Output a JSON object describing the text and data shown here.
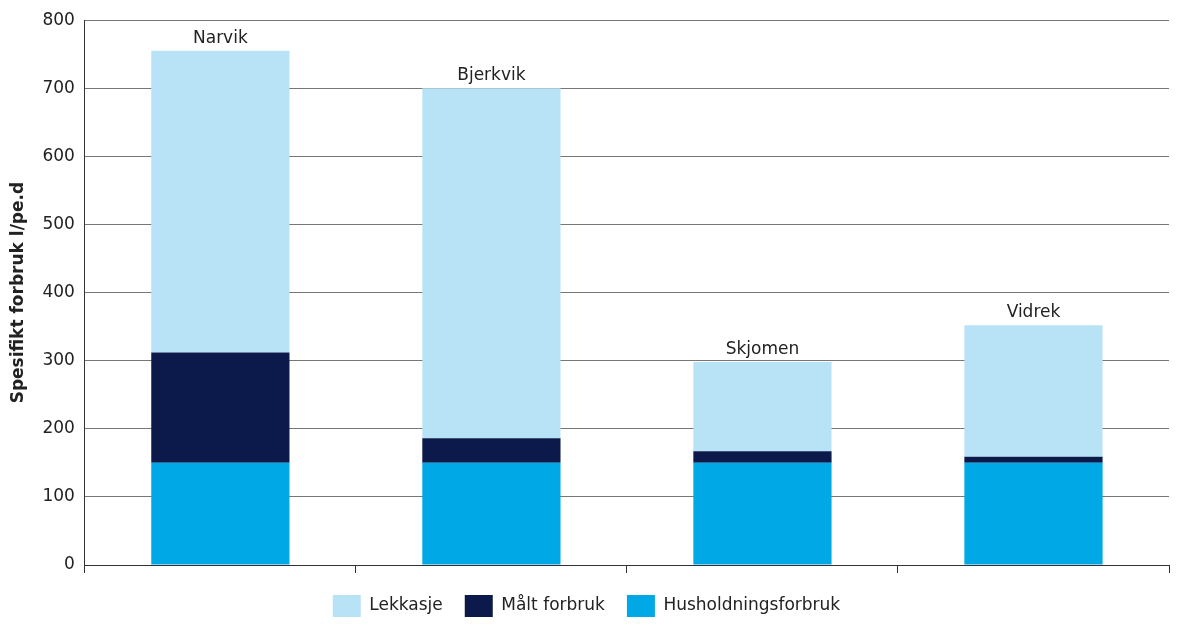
{
  "chart_data": {
    "type": "bar",
    "stacked": true,
    "ylabel": "Spesifikt forbruk l/pe.d",
    "categories": [
      "Narvik",
      "Bjerkvik",
      "Skjomen",
      "Vidrek"
    ],
    "series": [
      {
        "name": "Husholdningsforbruk",
        "color": "#00a9e6",
        "values": [
          150,
          150,
          150,
          150
        ]
      },
      {
        "name": "Målt forbruk",
        "color": "#0b1a4a",
        "values": [
          162,
          36,
          17,
          9
        ]
      },
      {
        "name": "Lekkasje",
        "color": "#b8e3f6",
        "values": [
          443,
          514,
          131,
          193
        ]
      }
    ],
    "ylim": [
      0,
      800
    ],
    "yticks": [
      0,
      100,
      200,
      300,
      400,
      500,
      600,
      700,
      800
    ],
    "grid": "y",
    "legend": "bottom right"
  }
}
